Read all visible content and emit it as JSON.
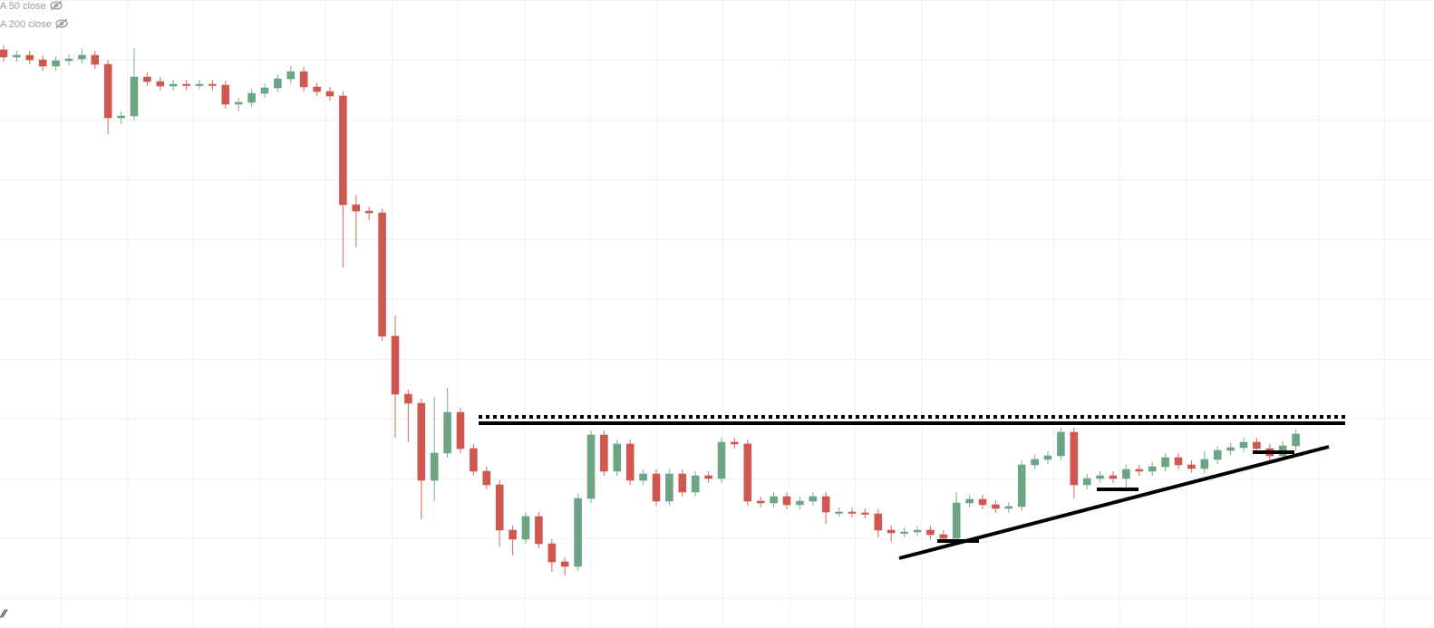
{
  "chart_data": {
    "type": "candlestick",
    "indicators": [
      "A 50 close",
      "A 200 close"
    ],
    "ylim": [
      0,
      693
    ],
    "up_color": "#6ba583",
    "down_color": "#d0574f",
    "open": [
      638,
      630,
      632,
      627,
      620,
      626,
      628,
      632,
      622,
      563,
      565,
      608,
      603,
      598,
      600,
      599,
      600,
      599,
      578,
      580,
      590,
      596,
      606,
      614,
      597,
      592,
      587,
      467,
      460,
      458,
      322,
      258,
      248,
      163,
      193,
      238,
      198,
      173,
      158,
      108,
      98,
      123,
      93,
      73,
      68,
      143,
      213,
      173,
      203,
      163,
      170,
      140,
      170,
      150,
      168,
      165,
      205,
      203,
      140,
      138,
      145,
      136,
      140,
      145,
      128,
      128,
      127,
      126,
      108,
      105,
      106,
      108,
      103,
      99,
      138,
      142,
      136,
      132,
      134,
      180,
      186,
      190,
      216,
      158,
      165,
      168,
      165,
      175,
      173,
      178,
      188,
      180,
      176,
      186,
      196,
      199,
      205,
      198,
      190,
      201
    ],
    "high": [
      643,
      637,
      637,
      632,
      631,
      633,
      640,
      637,
      627,
      570,
      640,
      613,
      608,
      605,
      605,
      605,
      605,
      604,
      585,
      595,
      601,
      611,
      620,
      619,
      602,
      597,
      592,
      478,
      465,
      463,
      345,
      263,
      253,
      255,
      265,
      243,
      203,
      178,
      163,
      113,
      128,
      128,
      98,
      78,
      148,
      218,
      218,
      208,
      208,
      175,
      175,
      175,
      175,
      173,
      173,
      210,
      210,
      208,
      145,
      150,
      150,
      145,
      150,
      150,
      133,
      133,
      132,
      131,
      113,
      111,
      113,
      113,
      108,
      150,
      147,
      147,
      141,
      139,
      185,
      191,
      195,
      221,
      221,
      170,
      173,
      173,
      180,
      180,
      183,
      193,
      193,
      185,
      195,
      201,
      204,
      210,
      210,
      203,
      206,
      219
    ],
    "low": [
      625,
      625,
      622,
      615,
      615,
      621,
      623,
      617,
      545,
      556,
      560,
      598,
      593,
      593,
      594,
      594,
      594,
      573,
      570,
      575,
      585,
      591,
      601,
      592,
      587,
      582,
      398,
      420,
      450,
      317,
      210,
      205,
      120,
      140,
      188,
      193,
      168,
      153,
      90,
      80,
      93,
      88,
      62,
      58,
      63,
      138,
      168,
      168,
      158,
      158,
      135,
      135,
      145,
      145,
      160,
      160,
      198,
      135,
      133,
      133,
      131,
      131,
      135,
      115,
      123,
      122,
      121,
      100,
      95,
      100,
      101,
      98,
      94,
      94,
      133,
      131,
      127,
      127,
      129,
      175,
      181,
      185,
      143,
      153,
      160,
      160,
      150,
      168,
      168,
      173,
      175,
      171,
      171,
      181,
      191,
      194,
      193,
      185,
      185,
      196
    ],
    "close": [
      630,
      632,
      627,
      620,
      626,
      628,
      632,
      622,
      563,
      565,
      608,
      603,
      598,
      600,
      599,
      600,
      599,
      578,
      580,
      590,
      596,
      606,
      614,
      597,
      592,
      587,
      467,
      460,
      458,
      322,
      258,
      248,
      163,
      193,
      238,
      198,
      173,
      158,
      108,
      98,
      123,
      93,
      73,
      68,
      143,
      213,
      173,
      203,
      163,
      170,
      140,
      170,
      150,
      168,
      165,
      205,
      203,
      140,
      138,
      145,
      136,
      140,
      145,
      128,
      128,
      127,
      126,
      108,
      105,
      106,
      108,
      103,
      99,
      138,
      142,
      136,
      132,
      134,
      180,
      186,
      190,
      216,
      158,
      165,
      168,
      165,
      175,
      173,
      178,
      188,
      180,
      176,
      186,
      196,
      199,
      205,
      198,
      190,
      201,
      214
    ]
  }
}
